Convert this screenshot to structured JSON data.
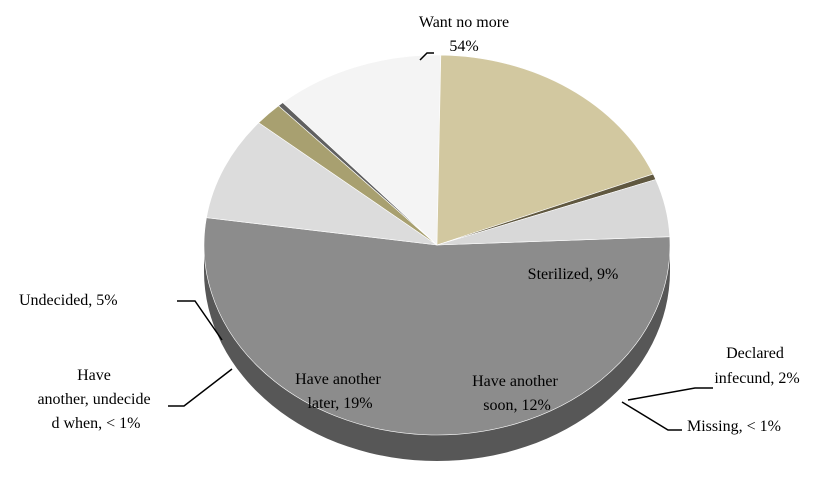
{
  "chart_data": {
    "type": "pie",
    "style": "3d",
    "colors": {
      "want_no_more": "#8c8c8c",
      "sterilized": "#dcdcdc",
      "declared_infecund": "#a8a070",
      "missing": "#606060",
      "have_another_soon": "#f4f4f4",
      "have_another_later": "#d2c8a0",
      "undecided_when": "#605840",
      "undecided": "#d8d8d8"
    },
    "slices": [
      {
        "key": "want_no_more",
        "name": "Want no more",
        "value": 54,
        "value_label": "54%"
      },
      {
        "key": "sterilized",
        "name": "Sterilized",
        "value": 9,
        "value_label": "9%",
        "label": "Sterilized, 9%"
      },
      {
        "key": "declared_infecund",
        "name": "Declared infecund",
        "value": 2,
        "value_label": "2%",
        "label_lines": [
          "Declared",
          "infecund, 2%"
        ]
      },
      {
        "key": "missing",
        "name": "Missing",
        "value": 0.4,
        "value_label": "< 1%",
        "label": "Missing, < 1%"
      },
      {
        "key": "have_another_soon",
        "name": "Have another soon",
        "value": 12,
        "value_label": "12%",
        "label_lines": [
          "Have another",
          "soon, 12%"
        ]
      },
      {
        "key": "have_another_later",
        "name": "Have another later",
        "value": 19,
        "value_label": "19%",
        "label_lines": [
          "Have another",
          "later, 19%"
        ]
      },
      {
        "key": "undecided_when",
        "name": "Have another, undecided when",
        "value": 0.5,
        "value_label": "< 1%",
        "label_lines": [
          "Have",
          "another, undecide",
          "d when, < 1%"
        ]
      },
      {
        "key": "undecided",
        "name": "Undecided",
        "value": 5,
        "value_label": "5%",
        "label": "Undecided, 5%"
      }
    ]
  }
}
